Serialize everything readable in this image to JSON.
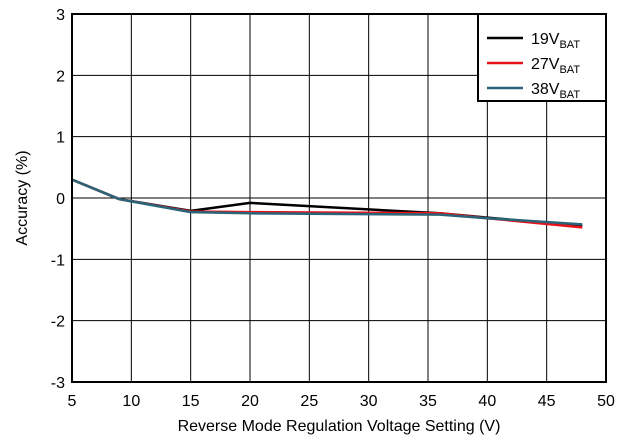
{
  "chart_data": {
    "type": "line",
    "title": "",
    "xlabel": "Reverse Mode Regulation Voltage Setting (V)",
    "ylabel": "Accuracy (%)",
    "xlim": [
      5,
      50
    ],
    "ylim": [
      -3,
      3
    ],
    "xticks": [
      5,
      10,
      15,
      20,
      25,
      30,
      35,
      40,
      45,
      50
    ],
    "yticks": [
      -3,
      -2,
      -1,
      0,
      1,
      2,
      3
    ],
    "xtick_labels": [
      "5",
      "10",
      "15",
      "20",
      "25",
      "30",
      "35",
      "40",
      "45",
      "50"
    ],
    "ytick_labels": [
      "-3",
      "-2",
      "-1",
      "0",
      "1",
      "2",
      "3"
    ],
    "grid": true,
    "legend_position": "top-right",
    "series": [
      {
        "name": "19V",
        "name_subscript": "BAT",
        "color": "#000000",
        "x": [
          5,
          9,
          15,
          20,
          36,
          40,
          48
        ],
        "y": [
          0.3,
          -0.02,
          -0.21,
          -0.08,
          -0.25,
          -0.32,
          -0.46
        ]
      },
      {
        "name": "27V",
        "name_subscript": "BAT",
        "color": "#e8121a",
        "x": [
          5,
          9,
          15,
          20,
          36,
          40,
          48
        ],
        "y": [
          0.3,
          -0.02,
          -0.22,
          -0.23,
          -0.25,
          -0.33,
          -0.48
        ]
      },
      {
        "name": "38V",
        "name_subscript": "BAT",
        "color": "#2a6478",
        "x": [
          5,
          9,
          15,
          20,
          36,
          40,
          48
        ],
        "y": [
          0.3,
          -0.02,
          -0.23,
          -0.25,
          -0.27,
          -0.33,
          -0.43
        ]
      }
    ]
  }
}
